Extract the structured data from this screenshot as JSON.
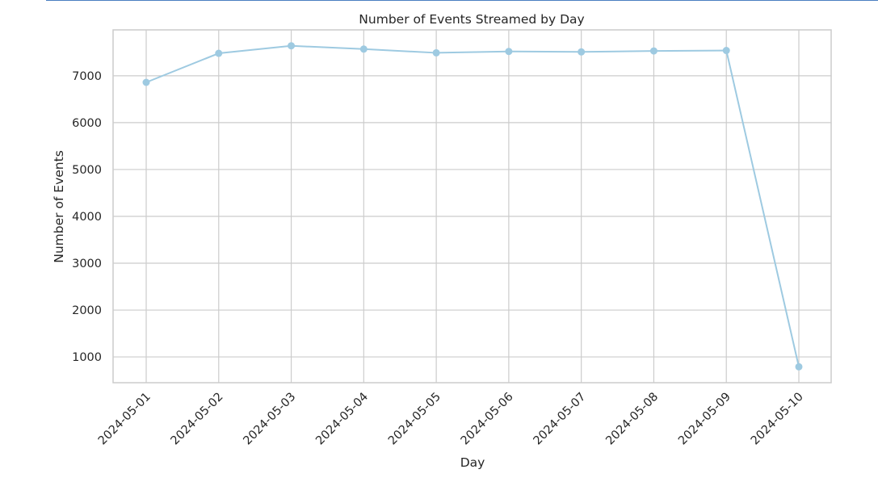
{
  "chart_data": {
    "type": "line",
    "title": "Number of Events Streamed by Day",
    "xlabel": "Day",
    "ylabel": "Number of Events",
    "categories": [
      "2024-05-01",
      "2024-05-02",
      "2024-05-03",
      "2024-05-04",
      "2024-05-05",
      "2024-05-06",
      "2024-05-07",
      "2024-05-08",
      "2024-05-09",
      "2024-05-10"
    ],
    "values": [
      6860,
      7480,
      7640,
      7570,
      7490,
      7520,
      7510,
      7530,
      7540,
      790
    ],
    "ylim": [
      450,
      7980
    ],
    "yticks": [
      1000,
      2000,
      3000,
      4000,
      5000,
      6000,
      7000
    ],
    "grid": true,
    "line_color": "#9ecae1",
    "grid_color": "#cccccc"
  }
}
